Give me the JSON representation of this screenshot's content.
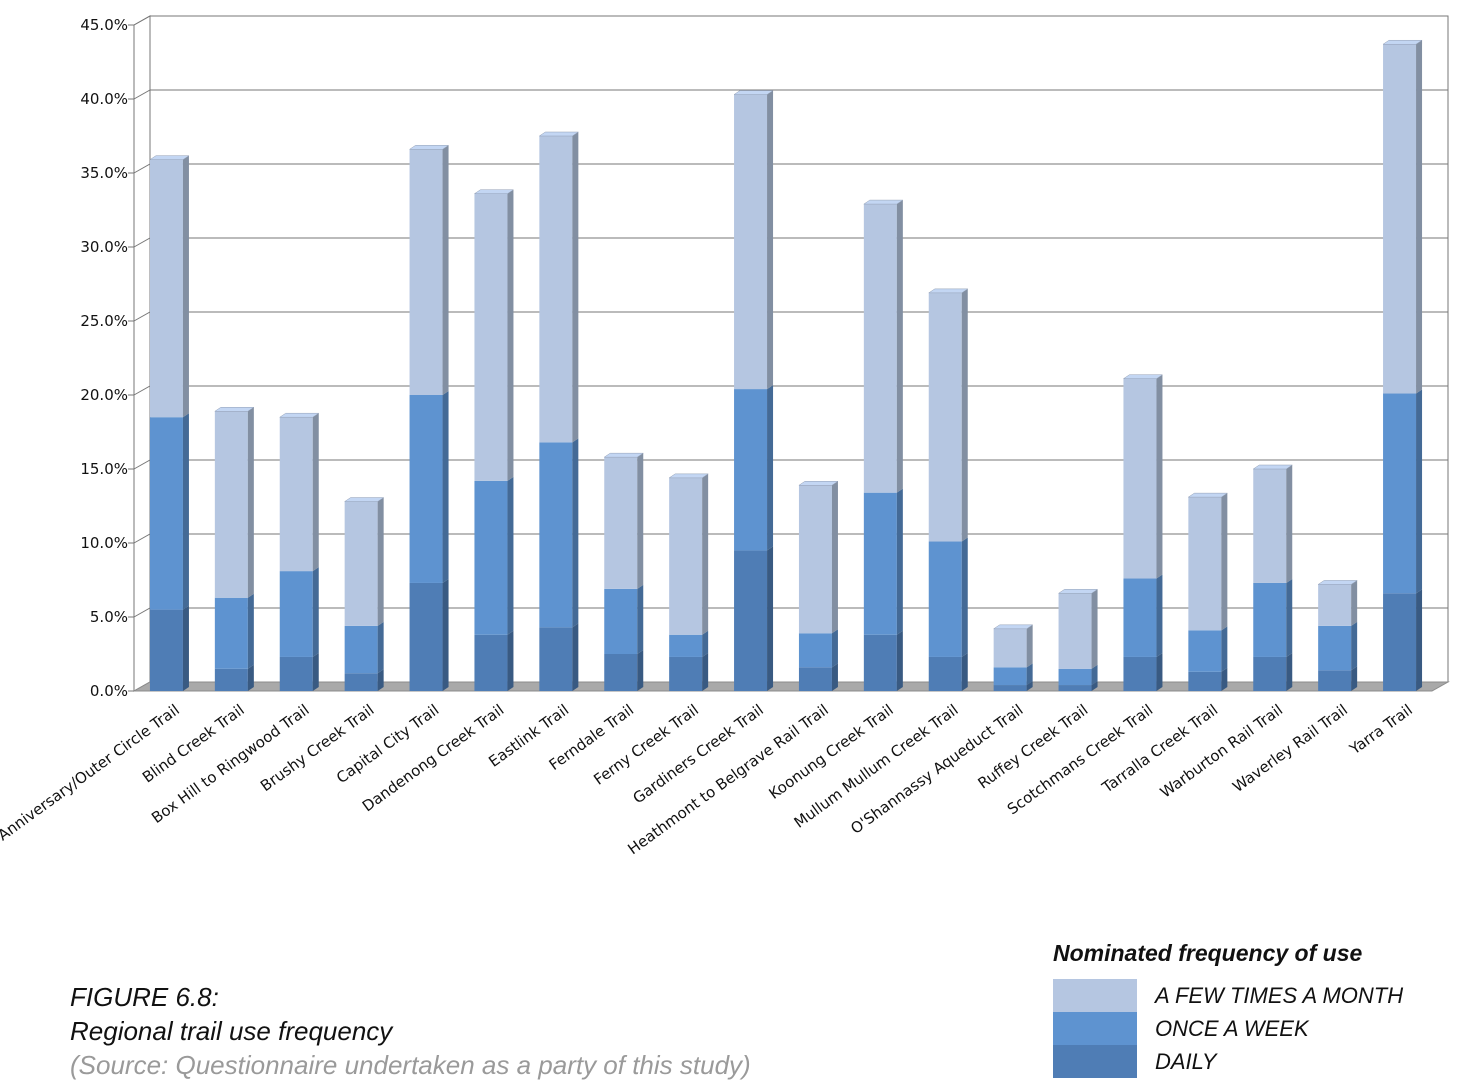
{
  "chart_data": {
    "type": "bar",
    "stacked": true,
    "categories": [
      "Anniversary/Outer Circle Trail",
      "Blind Creek Trail",
      "Box Hill to Ringwood Trail",
      "Brushy Creek Trail",
      "Capital City Trail",
      "Dandenong Creek Trail",
      "Eastlink Trail",
      "Ferndale Trail",
      "Ferny Creek Trail",
      "Gardiners Creek Trail",
      "Heathmont to Belgrave Rail Trail",
      "Koonung Creek Trail",
      "Mullum Mullum Creek Trail",
      "O'Shannassy Aqueduct Trail",
      "Ruffey Creek Trail",
      "Scotchmans Creek Trail",
      "Tarralla Creek Trail",
      "Warburton Rail Trail",
      "Waverley Rail Trail",
      "Yarra Trail"
    ],
    "series": [
      {
        "name": "DAILY",
        "color": "#4f7db5",
        "values": [
          5.5,
          1.5,
          2.3,
          1.2,
          7.3,
          3.8,
          4.3,
          2.5,
          2.3,
          9.5,
          1.6,
          3.8,
          2.3,
          0.4,
          0.4,
          2.3,
          1.3,
          2.3,
          1.4,
          6.6
        ]
      },
      {
        "name": "ONCE A WEEK",
        "color": "#5e93d0",
        "values": [
          13.0,
          4.8,
          5.8,
          3.2,
          12.7,
          10.4,
          12.5,
          4.4,
          1.5,
          10.9,
          2.3,
          9.6,
          7.8,
          1.2,
          1.1,
          5.3,
          2.8,
          5.0,
          3.0,
          13.5
        ]
      },
      {
        "name": "A FEW TIMES A MONTH",
        "color": "#b5c6e1",
        "values": [
          17.4,
          12.6,
          10.4,
          8.4,
          16.6,
          19.4,
          20.7,
          8.9,
          10.6,
          19.9,
          10.0,
          19.5,
          16.8,
          2.6,
          5.1,
          13.5,
          9.0,
          7.7,
          2.8,
          23.6
        ]
      }
    ],
    "ylim": [
      0,
      45
    ],
    "yticks": [
      "0.0%",
      "5.0%",
      "10.0%",
      "15.0%",
      "20.0%",
      "25.0%",
      "30.0%",
      "35.0%",
      "40.0%",
      "45.0%"
    ],
    "grid": true
  },
  "caption": {
    "figure": "FIGURE 6.8:",
    "title": "Regional trail use frequency",
    "source": "(Source: Questionnaire undertaken as a party of this study)"
  },
  "legend": {
    "title": "Nominated frequency of use",
    "items": [
      {
        "label": "A FEW TIMES A MONTH",
        "color": "#b5c6e1"
      },
      {
        "label": "ONCE A WEEK",
        "color": "#5e93d0"
      },
      {
        "label": "DAILY",
        "color": "#4f7db5"
      }
    ]
  }
}
